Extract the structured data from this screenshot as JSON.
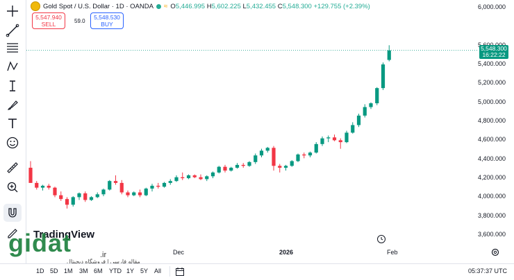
{
  "legend": {
    "symbol": "Gold Spot / U.S. Dollar · 1D · OANDA",
    "open_label": "O",
    "open": "5,446.995",
    "high_label": "H",
    "high": "5,602.225",
    "low_label": "L",
    "low": "5,432.455",
    "close_label": "C",
    "close": "5,548.300",
    "change": "+129.755 (+2.39%)"
  },
  "trade": {
    "sell_price": "5,547.940",
    "sell_label": "SELL",
    "spread": "59.0",
    "buy_price": "5,548.530",
    "buy_label": "BUY"
  },
  "price_tag": {
    "price": "5,548.300",
    "countdown": "16:22:22"
  },
  "price_axis": [
    "6,000.000",
    "5,600.000",
    "5,400.000",
    "5,200.000",
    "5,000.000",
    "4,800.000",
    "4,600.000",
    "4,400.000",
    "4,200.000",
    "4,000.000",
    "3,800.000",
    "3,600.000"
  ],
  "time_axis": {
    "dec": "Dec",
    "y2026": "2026",
    "feb": "Feb"
  },
  "ranges": [
    "1D",
    "5D",
    "1M",
    "3M",
    "6M",
    "YTD",
    "1Y",
    "5Y",
    "All"
  ],
  "clock": "05:37:37 UTC",
  "watermark": {
    "tv": "TradingView",
    "site": "gidat",
    "tld": ".ir",
    "sub": "مقاله فارسی | فروشگاه دیجیتال"
  },
  "colors": {
    "up": "#089981",
    "down": "#f23645",
    "accent": "#2962ff"
  },
  "chart_data": {
    "type": "candlestick",
    "y_range": [
      3550,
      6050
    ],
    "last_price": 5548.3,
    "candles": [
      [
        4310,
        4380,
        4150,
        4150
      ],
      [
        4150,
        4170,
        4080,
        4100
      ],
      [
        4100,
        4130,
        4070,
        4120
      ],
      [
        4120,
        4140,
        4080,
        4100
      ],
      [
        4100,
        4110,
        4000,
        4020
      ],
      [
        4020,
        4060,
        3960,
        3980
      ],
      [
        3980,
        4000,
        3880,
        3920
      ],
      [
        3920,
        4010,
        3900,
        4000
      ],
      [
        4000,
        4050,
        3970,
        4040
      ],
      [
        4040,
        4060,
        3950,
        3970
      ],
      [
        3970,
        4010,
        3960,
        4000
      ],
      [
        4000,
        4050,
        3990,
        4030
      ],
      [
        4030,
        4090,
        4010,
        4080
      ],
      [
        4080,
        4180,
        4070,
        4170
      ],
      [
        4170,
        4230,
        4130,
        4150
      ],
      [
        4150,
        4180,
        4030,
        4050
      ],
      [
        4050,
        4070,
        4000,
        4020
      ],
      [
        4020,
        4060,
        4010,
        4050
      ],
      [
        4050,
        4080,
        4000,
        4020
      ],
      [
        4020,
        4100,
        4010,
        4090
      ],
      [
        4090,
        4140,
        4060,
        4120
      ],
      [
        4120,
        4150,
        4090,
        4110
      ],
      [
        4110,
        4160,
        4100,
        4150
      ],
      [
        4150,
        4190,
        4130,
        4170
      ],
      [
        4170,
        4230,
        4160,
        4210
      ],
      [
        4210,
        4260,
        4180,
        4200
      ],
      [
        4200,
        4240,
        4190,
        4230
      ],
      [
        4230,
        4240,
        4200,
        4210
      ],
      [
        4210,
        4240,
        4180,
        4190
      ],
      [
        4190,
        4230,
        4170,
        4220
      ],
      [
        4220,
        4270,
        4200,
        4260
      ],
      [
        4260,
        4330,
        4250,
        4320
      ],
      [
        4320,
        4340,
        4260,
        4280
      ],
      [
        4280,
        4320,
        4270,
        4310
      ],
      [
        4310,
        4360,
        4300,
        4340
      ],
      [
        4340,
        4360,
        4310,
        4330
      ],
      [
        4330,
        4380,
        4320,
        4370
      ],
      [
        4370,
        4460,
        4350,
        4440
      ],
      [
        4440,
        4510,
        4420,
        4490
      ],
      [
        4490,
        4530,
        4470,
        4520
      ],
      [
        4520,
        4540,
        4280,
        4330
      ],
      [
        4330,
        4350,
        4260,
        4310
      ],
      [
        4310,
        4340,
        4280,
        4330
      ],
      [
        4330,
        4390,
        4320,
        4380
      ],
      [
        4380,
        4460,
        4370,
        4450
      ],
      [
        4450,
        4470,
        4410,
        4440
      ],
      [
        4440,
        4480,
        4420,
        4470
      ],
      [
        4470,
        4580,
        4460,
        4560
      ],
      [
        4560,
        4640,
        4540,
        4620
      ],
      [
        4620,
        4650,
        4580,
        4630
      ],
      [
        4630,
        4660,
        4590,
        4600
      ],
      [
        4600,
        4620,
        4510,
        4580
      ],
      [
        4580,
        4700,
        4570,
        4680
      ],
      [
        4680,
        4790,
        4670,
        4760
      ],
      [
        4760,
        4880,
        4740,
        4860
      ],
      [
        4860,
        4980,
        4840,
        4950
      ],
      [
        4950,
        5000,
        4930,
        4990
      ],
      [
        4990,
        5160,
        4970,
        5150
      ],
      [
        5150,
        5420,
        5130,
        5400
      ],
      [
        5447,
        5602,
        5432,
        5548
      ]
    ]
  }
}
